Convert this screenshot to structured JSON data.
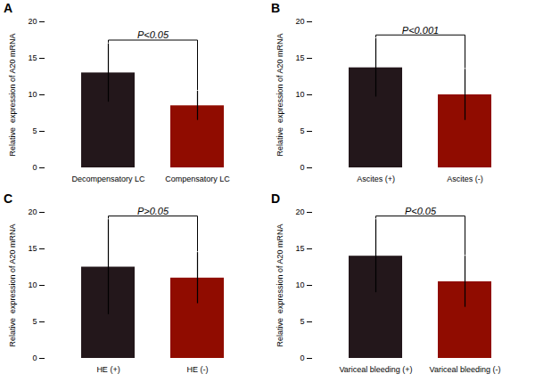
{
  "chart_data": [
    {
      "type": "bar",
      "title": "A",
      "ylabel": "Relative  expression of A20 mRNA",
      "categories": [
        "Decompensatory LC",
        "Compensatory LC"
      ],
      "values": [
        13.0,
        8.5
      ],
      "errors": [
        4.0,
        2.0
      ],
      "annotations": [
        "P<0.05"
      ],
      "ylim": [
        0,
        20
      ],
      "yticks": [
        0,
        5,
        10,
        15,
        20
      ]
    },
    {
      "type": "bar",
      "title": "B",
      "ylabel": "Relative  expression of A20 mRNA",
      "categories": [
        "Ascites (+)",
        "Ascites (-)"
      ],
      "values": [
        13.7,
        10.0
      ],
      "errors": [
        4.0,
        3.5
      ],
      "annotations": [
        "P<0.001"
      ],
      "ylim": [
        0,
        20
      ],
      "yticks": [
        0,
        5,
        10,
        15,
        20
      ]
    },
    {
      "type": "bar",
      "title": "C",
      "ylabel": "Relative  expression of A20 mRNA",
      "categories": [
        "HE (+)",
        "HE (-)"
      ],
      "values": [
        12.5,
        11.0
      ],
      "errors": [
        6.5,
        3.5
      ],
      "annotations": [
        "P>0.05"
      ],
      "ylim": [
        0,
        20
      ],
      "yticks": [
        0,
        5,
        10,
        15,
        20
      ]
    },
    {
      "type": "bar",
      "title": "D",
      "ylabel": "Relative  expression of A20 mRNA",
      "categories": [
        "Variceal bleeding (+)",
        "Variceal bleeding (-)"
      ],
      "values": [
        14.0,
        10.5
      ],
      "errors": [
        5.0,
        3.5
      ],
      "annotations": [
        "P<0.05"
      ],
      "ylim": [
        0,
        20
      ],
      "yticks": [
        0,
        5,
        10,
        15,
        20
      ]
    }
  ]
}
